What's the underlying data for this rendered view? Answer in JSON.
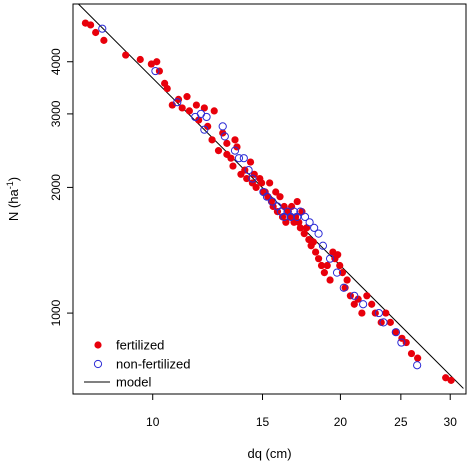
{
  "chart_data": {
    "type": "scatter",
    "x_scale": "log",
    "y_scale": "log",
    "xlabel": "dq (cm)",
    "ylabel_main": "N (ha",
    "ylabel_sup": "-1",
    "ylabel_close": ")",
    "xlim": [
      7.45,
      31.8
    ],
    "ylim": [
      640,
      5500
    ],
    "x_ticks": [
      10,
      15,
      20,
      25,
      30
    ],
    "y_ticks": [
      1000,
      2000,
      3000,
      4000
    ],
    "colors": {
      "fertilized": "#e8000b",
      "non_fertilized": "#2b2bd6",
      "model": "#000000"
    },
    "legend_position": "bottom-left",
    "legend": [
      {
        "key": "fertilized",
        "label": "fertilized",
        "marker": "filled-circle"
      },
      {
        "key": "non_fertilized",
        "label": "non-fertilized",
        "marker": "open-circle"
      },
      {
        "key": "model",
        "label": "model",
        "marker": "line"
      }
    ],
    "model_line": {
      "x": [
        7.6,
        31.5
      ],
      "y": [
        5500,
        660
      ]
    },
    "series": [
      {
        "key": "fertilized",
        "points": [
          [
            7.8,
            4950
          ],
          [
            7.95,
            4900
          ],
          [
            8.1,
            4700
          ],
          [
            8.35,
            4500
          ],
          [
            9.05,
            4150
          ],
          [
            9.55,
            4050
          ],
          [
            9.95,
            3950
          ],
          [
            10.15,
            4000
          ],
          [
            10.25,
            3800
          ],
          [
            10.45,
            3550
          ],
          [
            10.55,
            3450
          ],
          [
            10.75,
            3150
          ],
          [
            11.0,
            3250
          ],
          [
            11.15,
            3100
          ],
          [
            11.35,
            3300
          ],
          [
            11.45,
            3050
          ],
          [
            11.75,
            3150
          ],
          [
            11.85,
            2900
          ],
          [
            12.1,
            3100
          ],
          [
            12.25,
            2800
          ],
          [
            12.45,
            2600
          ],
          [
            12.55,
            3050
          ],
          [
            12.75,
            2450
          ],
          [
            12.95,
            2700
          ],
          [
            13.15,
            2550
          ],
          [
            13.15,
            2400
          ],
          [
            13.35,
            2350
          ],
          [
            13.45,
            2250
          ],
          [
            13.55,
            2600
          ],
          [
            13.65,
            2500
          ],
          [
            13.85,
            2150
          ],
          [
            14.05,
            2200
          ],
          [
            14.15,
            2100
          ],
          [
            14.35,
            2300
          ],
          [
            14.45,
            2050
          ],
          [
            14.55,
            2150
          ],
          [
            14.65,
            2000
          ],
          [
            14.85,
            2100
          ],
          [
            14.95,
            2050
          ],
          [
            15.05,
            1950
          ],
          [
            15.15,
            1950
          ],
          [
            15.3,
            1900
          ],
          [
            15.4,
            2050
          ],
          [
            15.5,
            1850
          ],
          [
            15.6,
            1800
          ],
          [
            15.75,
            1950
          ],
          [
            15.85,
            1750
          ],
          [
            16.0,
            1900
          ],
          [
            16.15,
            1700
          ],
          [
            16.25,
            1800
          ],
          [
            16.35,
            1650
          ],
          [
            16.5,
            1750
          ],
          [
            16.6,
            1700
          ],
          [
            16.7,
            1800
          ],
          [
            16.85,
            1650
          ],
          [
            16.95,
            1700
          ],
          [
            17.05,
            1850
          ],
          [
            17.15,
            1650
          ],
          [
            17.25,
            1600
          ],
          [
            17.35,
            1750
          ],
          [
            17.5,
            1550
          ],
          [
            17.65,
            1600
          ],
          [
            17.8,
            1500
          ],
          [
            17.95,
            1450
          ],
          [
            18.1,
            1480
          ],
          [
            18.25,
            1400
          ],
          [
            18.45,
            1350
          ],
          [
            18.65,
            1300
          ],
          [
            18.85,
            1250
          ],
          [
            19.05,
            1300
          ],
          [
            19.25,
            1200
          ],
          [
            19.45,
            1400
          ],
          [
            19.6,
            1350
          ],
          [
            19.8,
            1380
          ],
          [
            19.95,
            1300
          ],
          [
            20.15,
            1250
          ],
          [
            20.35,
            1150
          ],
          [
            20.5,
            1200
          ],
          [
            20.75,
            1100
          ],
          [
            21.05,
            1050
          ],
          [
            21.35,
            1080
          ],
          [
            21.65,
            1000
          ],
          [
            22.05,
            1100
          ],
          [
            22.45,
            1050
          ],
          [
            22.75,
            1000
          ],
          [
            23.25,
            950
          ],
          [
            23.65,
            1000
          ],
          [
            24.05,
            950
          ],
          [
            24.5,
            900
          ],
          [
            25.1,
            870
          ],
          [
            25.5,
            850
          ],
          [
            26.0,
            800
          ],
          [
            26.6,
            780
          ],
          [
            29.5,
            700
          ],
          [
            30.1,
            690
          ]
        ]
      },
      {
        "key": "non_fertilized",
        "points": [
          [
            8.3,
            4800
          ],
          [
            10.1,
            3800
          ],
          [
            10.95,
            3200
          ],
          [
            11.7,
            2950
          ],
          [
            11.95,
            3000
          ],
          [
            12.1,
            2750
          ],
          [
            12.2,
            2950
          ],
          [
            12.95,
            2800
          ],
          [
            13.05,
            2650
          ],
          [
            13.55,
            2450
          ],
          [
            13.75,
            2350
          ],
          [
            14.0,
            2350
          ],
          [
            14.25,
            2200
          ],
          [
            14.45,
            2100
          ],
          [
            15.05,
            1950
          ],
          [
            15.25,
            1900
          ],
          [
            15.55,
            1850
          ],
          [
            15.85,
            1800
          ],
          [
            16.05,
            1750
          ],
          [
            16.25,
            1700
          ],
          [
            16.45,
            1750
          ],
          [
            16.65,
            1700
          ],
          [
            16.85,
            1750
          ],
          [
            17.05,
            1700
          ],
          [
            17.25,
            1750
          ],
          [
            17.55,
            1700
          ],
          [
            17.85,
            1650
          ],
          [
            18.15,
            1600
          ],
          [
            18.45,
            1550
          ],
          [
            18.75,
            1450
          ],
          [
            19.25,
            1350
          ],
          [
            19.75,
            1250
          ],
          [
            20.25,
            1150
          ],
          [
            21.05,
            1100
          ],
          [
            21.75,
            1050
          ],
          [
            23.05,
            1000
          ],
          [
            23.45,
            950
          ],
          [
            24.55,
            900
          ],
          [
            25.05,
            850
          ],
          [
            26.55,
            750
          ]
        ]
      }
    ]
  }
}
